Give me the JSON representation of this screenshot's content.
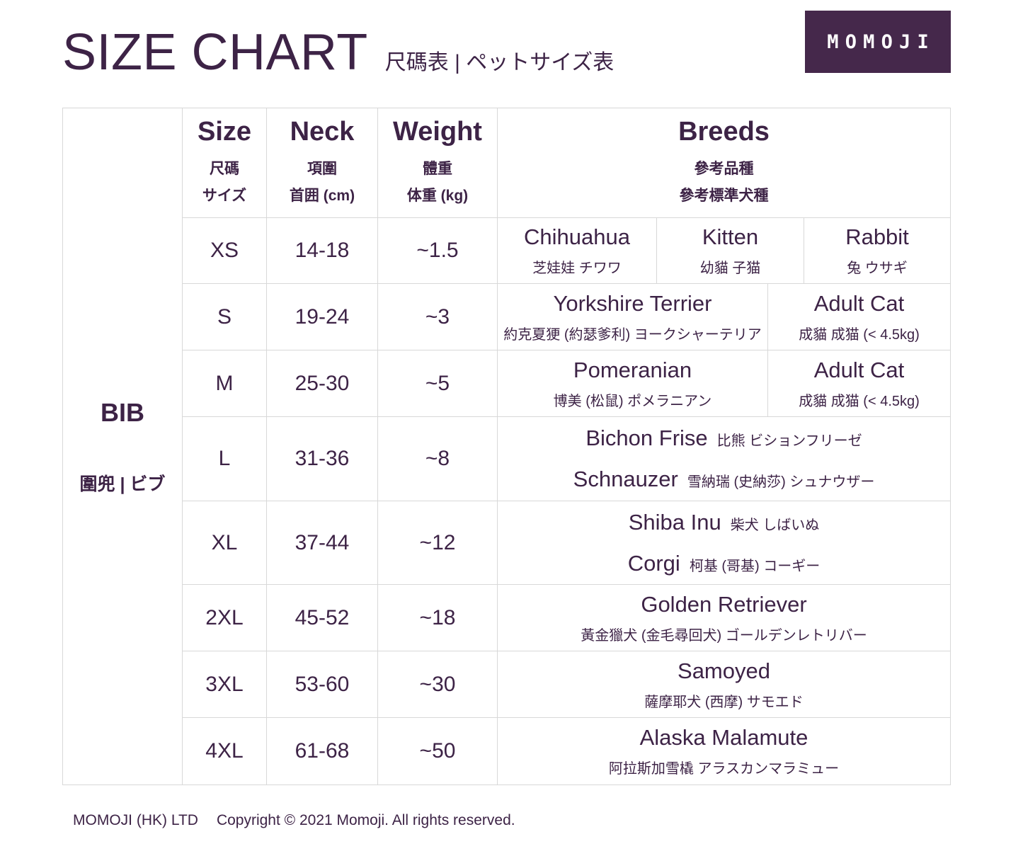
{
  "header": {
    "title": "SIZE CHART",
    "subtitle": "尺碼表 | ペットサイズ表",
    "logo_text": "MOMOJI"
  },
  "colors": {
    "text_purple": "#3D2346",
    "logo_background": "#45284B",
    "grid_line": "#D8D8D8",
    "page_background": "#FFFFFF"
  },
  "table": {
    "product": {
      "name": "BIB",
      "name_cjk": "圍兜 | ビブ"
    },
    "columns": {
      "size": {
        "en": "Size",
        "zh": "尺碼",
        "ja": "サイズ"
      },
      "neck": {
        "en": "Neck",
        "zh": "項圍",
        "ja": "首囲 (cm)"
      },
      "weight": {
        "en": "Weight",
        "zh": "體重",
        "ja": "体重 (kg)"
      },
      "breeds": {
        "en": "Breeds",
        "zh": "參考品種",
        "zh2": "參考標準犬種"
      }
    },
    "rows": [
      {
        "size": "XS",
        "neck": "14-18",
        "weight": "~1.5",
        "breeds": [
          {
            "en": "Chihuahua",
            "cjk": "芝娃娃  チワワ"
          },
          {
            "en": "Kitten",
            "cjk": "幼貓  子猫"
          },
          {
            "en": "Rabbit",
            "cjk": "兔  ウサギ"
          }
        ]
      },
      {
        "size": "S",
        "neck": "19-24",
        "weight": "~3",
        "breeds": [
          {
            "en": "Yorkshire Terrier",
            "cjk": "約克夏㹴  (約瑟爹利)  ヨークシャーテリア"
          },
          {
            "en": "Adult Cat",
            "cjk": "成貓  成猫  (< 4.5kg)"
          }
        ]
      },
      {
        "size": "M",
        "neck": "25-30",
        "weight": "~5",
        "breeds": [
          {
            "en": "Pomeranian",
            "cjk": "博美  (松鼠)  ポメラニアン"
          },
          {
            "en": "Adult Cat",
            "cjk": "成貓  成猫  (< 4.5kg)"
          }
        ]
      },
      {
        "size": "L",
        "neck": "31-36",
        "weight": "~8",
        "breeds": [
          {
            "en": "Bichon Frise",
            "cjk": "比熊  ビションフリーゼ"
          },
          {
            "en": "Schnauzer",
            "cjk": "雪納瑞  (史納莎)  シュナウザー"
          }
        ]
      },
      {
        "size": "XL",
        "neck": "37-44",
        "weight": "~12",
        "breeds": [
          {
            "en": "Shiba Inu",
            "cjk": "柴犬  しばいぬ"
          },
          {
            "en": "Corgi",
            "cjk": "柯基  (哥基)  コーギー"
          }
        ]
      },
      {
        "size": "2XL",
        "neck": "45-52",
        "weight": "~18",
        "breeds": [
          {
            "en": "Golden Retriever",
            "cjk": "黃金獵犬  (金毛尋回犬)  ゴールデンレトリバー"
          }
        ]
      },
      {
        "size": "3XL",
        "neck": "53-60",
        "weight": "~30",
        "breeds": [
          {
            "en": "Samoyed",
            "cjk": "薩摩耶犬  (西摩)  サモエド"
          }
        ]
      },
      {
        "size": "4XL",
        "neck": "61-68",
        "weight": "~50",
        "breeds": [
          {
            "en": "Alaska Malamute",
            "cjk": "阿拉斯加雪橇  アラスカンマラミュー"
          }
        ]
      }
    ]
  },
  "footer": {
    "company": "MOMOJI (HK) LTD",
    "copyright": "Copyright © 2021 Momoji. All rights reserved."
  }
}
